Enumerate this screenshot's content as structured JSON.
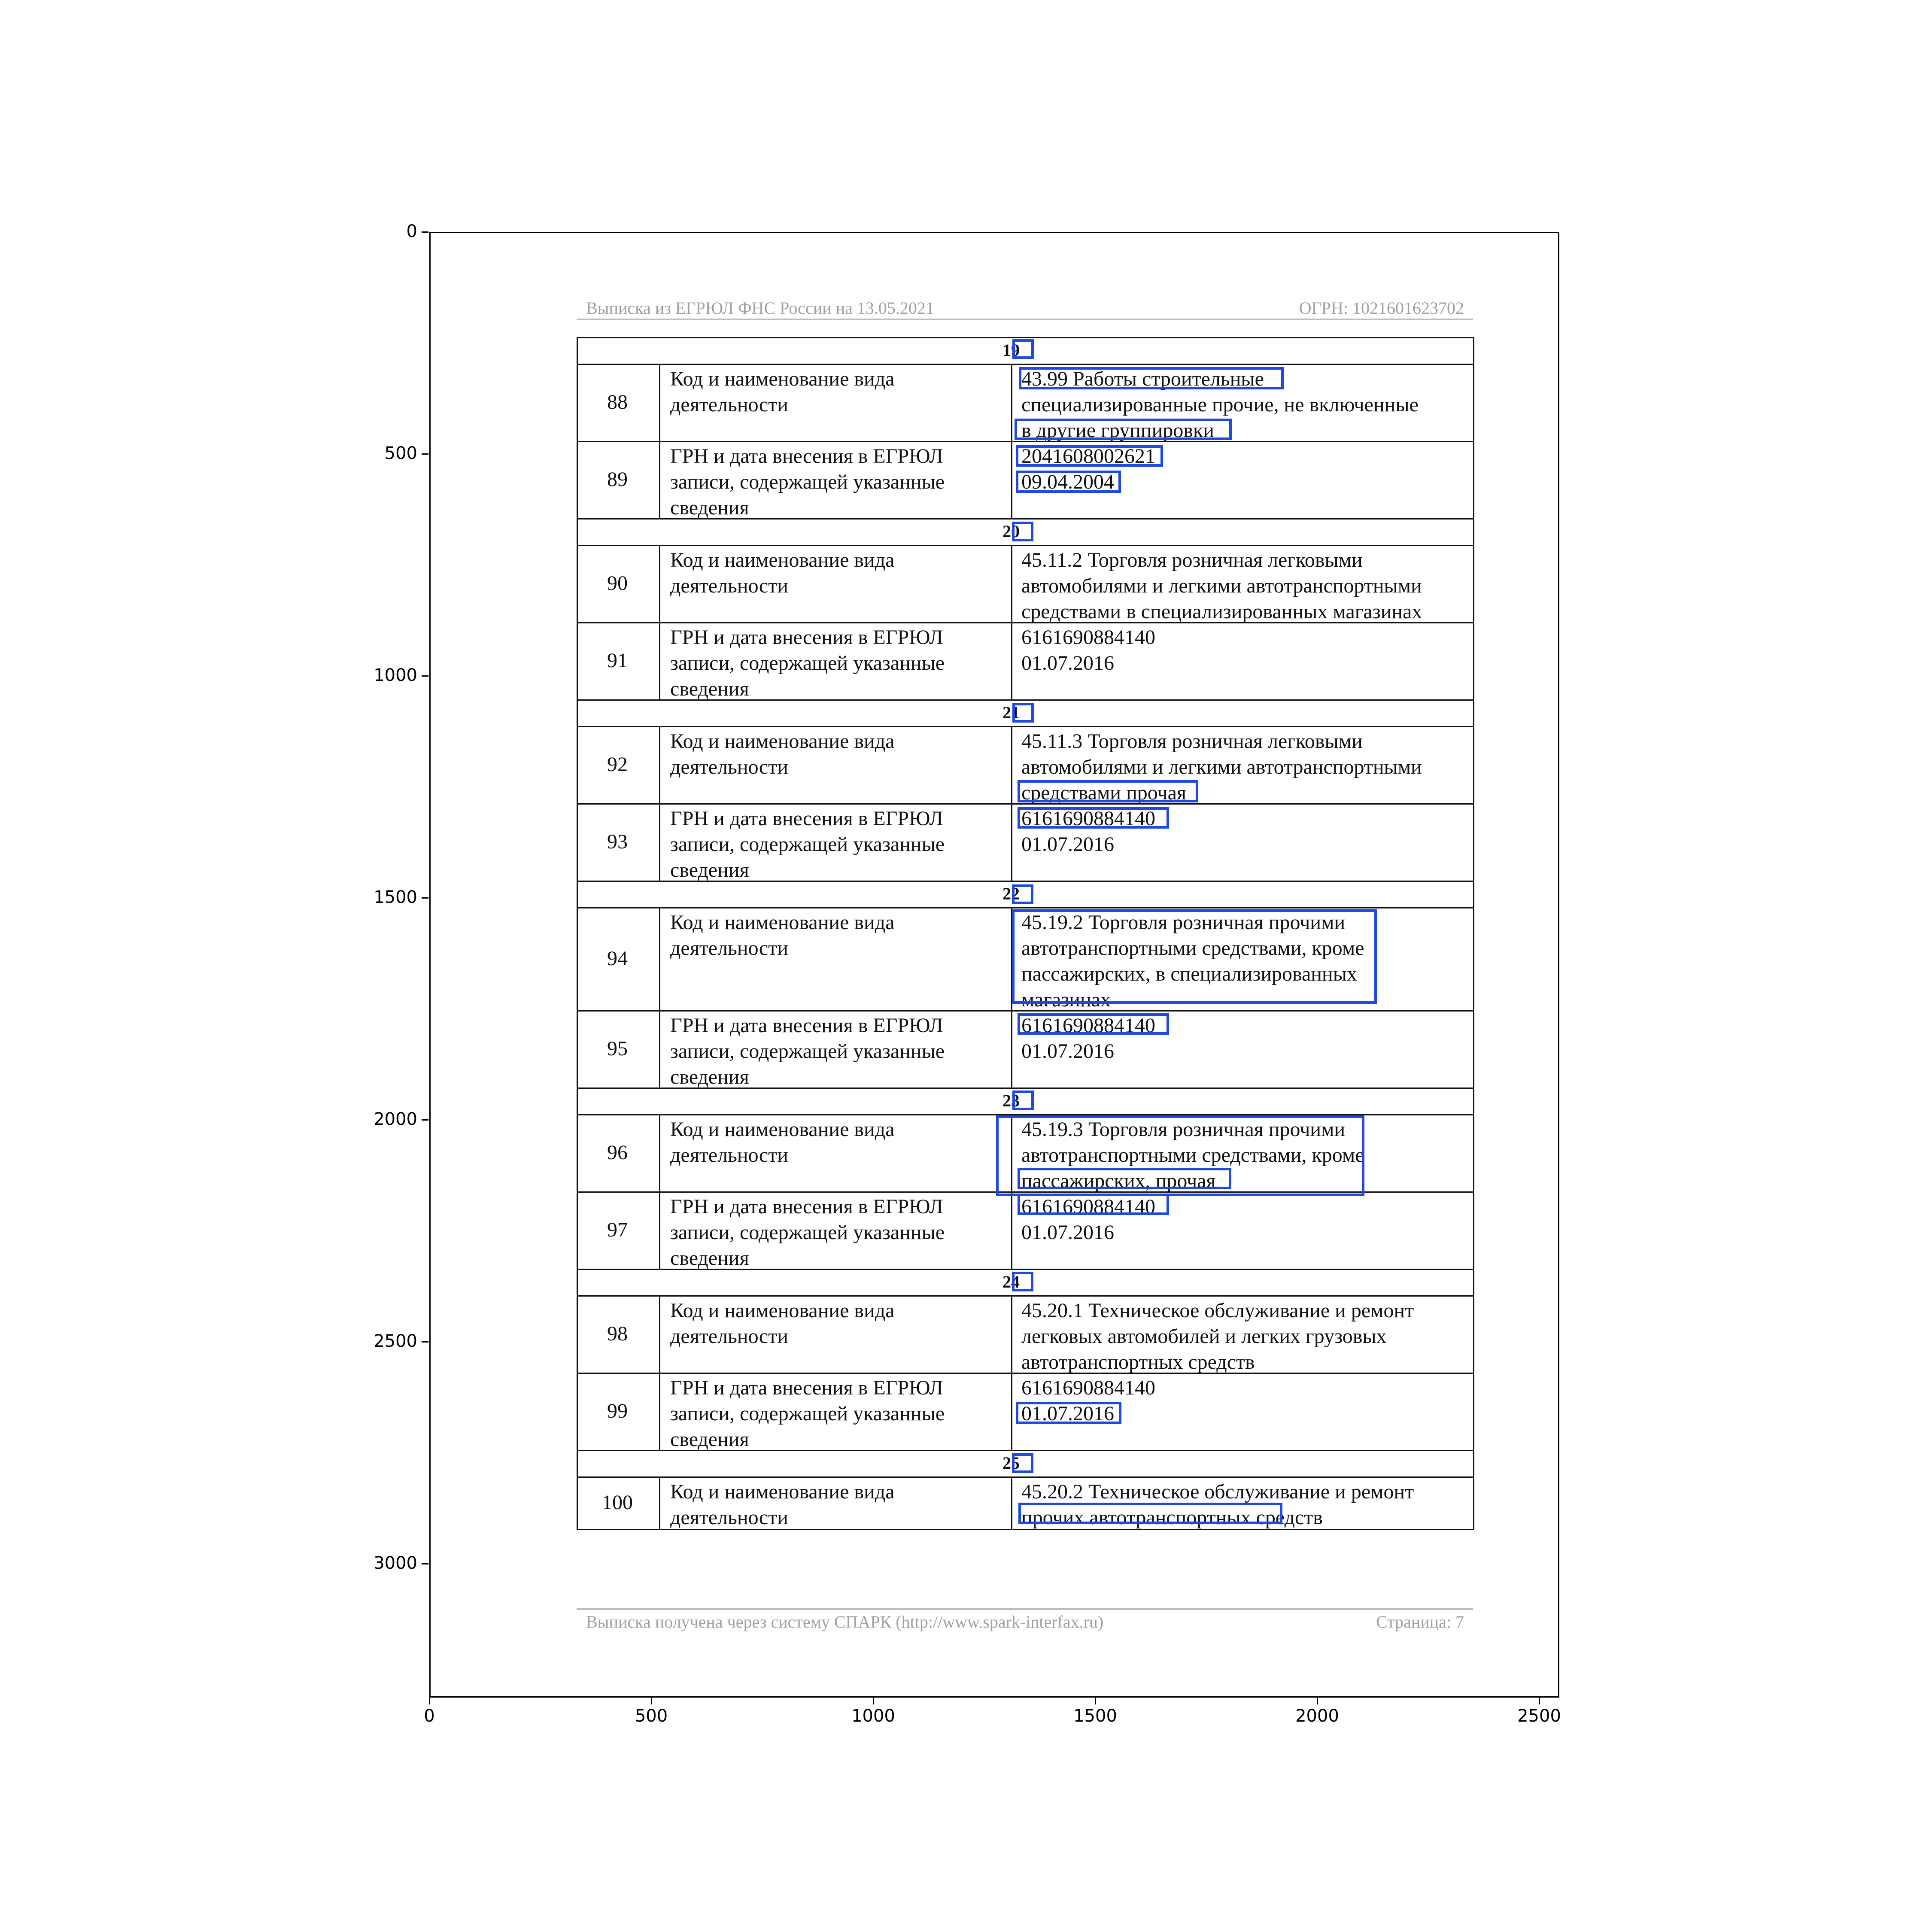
{
  "plot_axes": {
    "y_ticks": [
      "0",
      "500",
      "1000",
      "1500",
      "2000",
      "2500",
      "3000"
    ],
    "x_ticks": [
      "0",
      "500",
      "1000",
      "1500",
      "2000",
      "2500"
    ]
  },
  "document": {
    "header_left": "Выписка из ЕГРЮЛ ФНС России на 13.05.2021",
    "header_right": "ОГРН: 1021601623702",
    "footer_left": "Выписка получена через систему СПАРК (http://www.spark-interfax.ru)",
    "footer_right": "Страница: 7",
    "sections": [
      {
        "number": "19",
        "rows": [
          {
            "num": "88",
            "label": [
              "Код и наименование вида",
              "деятельности"
            ],
            "value": [
              "43.99 Работы строительные",
              "специализированные прочие, не включенные",
              "в другие группировки"
            ]
          },
          {
            "num": "89",
            "label": [
              "ГРН и дата внесения в ЕГРЮЛ",
              "записи, содержащей указанные",
              "сведения"
            ],
            "value": [
              "2041608002621",
              "09.04.2004"
            ]
          }
        ]
      },
      {
        "number": "20",
        "rows": [
          {
            "num": "90",
            "label": [
              "Код и наименование вида",
              "деятельности"
            ],
            "value": [
              "45.11.2 Торговля розничная легковыми",
              "автомобилями и легкими автотранспортными",
              "средствами в специализированных магазинах"
            ]
          },
          {
            "num": "91",
            "label": [
              "ГРН и дата внесения в ЕГРЮЛ",
              "записи, содержащей указанные",
              "сведения"
            ],
            "value": [
              "6161690884140",
              "01.07.2016"
            ]
          }
        ]
      },
      {
        "number": "21",
        "rows": [
          {
            "num": "92",
            "label": [
              "Код и наименование вида",
              "деятельности"
            ],
            "value": [
              "45.11.3 Торговля розничная легковыми",
              "автомобилями и легкими автотранспортными",
              "средствами прочая"
            ]
          },
          {
            "num": "93",
            "label": [
              "ГРН и дата внесения в ЕГРЮЛ",
              "записи, содержащей указанные",
              "сведения"
            ],
            "value": [
              "6161690884140",
              "01.07.2016"
            ]
          }
        ]
      },
      {
        "number": "22",
        "rows": [
          {
            "num": "94",
            "label": [
              "Код и наименование вида",
              "деятельности"
            ],
            "value": [
              "45.19.2 Торговля розничная прочими",
              "автотранспортными средствами, кроме",
              "пассажирских, в специализированных",
              "магазинах"
            ]
          },
          {
            "num": "95",
            "label": [
              "ГРН и дата внесения в ЕГРЮЛ",
              "записи, содержащей указанные",
              "сведения"
            ],
            "value": [
              "6161690884140",
              "01.07.2016"
            ]
          }
        ]
      },
      {
        "number": "23",
        "rows": [
          {
            "num": "96",
            "label": [
              "Код и наименование вида",
              "деятельности"
            ],
            "value": [
              "45.19.3 Торговля розничная прочими",
              "автотранспортными средствами, кроме",
              "пассажирских, прочая"
            ]
          },
          {
            "num": "97",
            "label": [
              "ГРН и дата внесения в ЕГРЮЛ",
              "записи, содержащей указанные",
              "сведения"
            ],
            "value": [
              "6161690884140",
              "01.07.2016"
            ]
          }
        ]
      },
      {
        "number": "24",
        "rows": [
          {
            "num": "98",
            "label": [
              "Код и наименование вида",
              "деятельности"
            ],
            "value": [
              "45.20.1 Техническое обслуживание и ремонт",
              "легковых автомобилей и легких грузовых",
              "автотранспортных средств"
            ]
          },
          {
            "num": "99",
            "label": [
              "ГРН и дата внесения в ЕГРЮЛ",
              "записи, содержащей указанные",
              "сведения"
            ],
            "value": [
              "6161690884140",
              "01.07.2016"
            ]
          }
        ]
      },
      {
        "number": "25",
        "rows": [
          {
            "num": "100",
            "label": [
              "Код и наименование вида",
              "деятельности"
            ],
            "value": [
              "45.20.2 Техническое обслуживание и ремонт",
              "прочих автотранспортных средств"
            ]
          }
        ]
      }
    ]
  }
}
